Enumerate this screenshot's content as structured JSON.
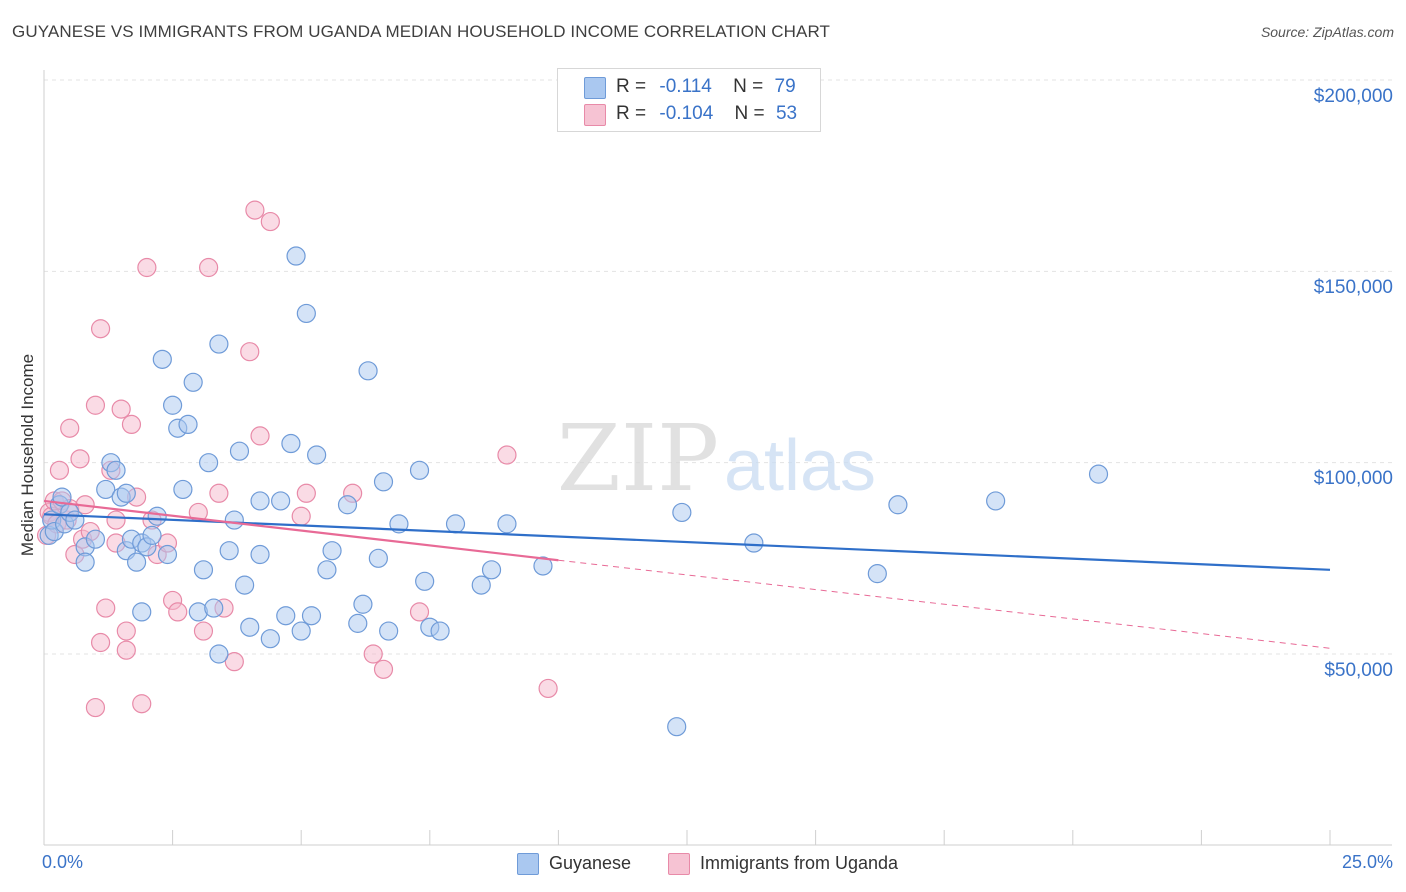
{
  "header": {
    "title": "GUYANESE VS IMMIGRANTS FROM UGANDA MEDIAN HOUSEHOLD INCOME CORRELATION CHART",
    "source": "Source: ZipAtlas.com"
  },
  "watermark": {
    "zip": "ZIP",
    "atlas": "atlas"
  },
  "legend": {
    "guyanese": {
      "r_label": "R =",
      "r_value": "-0.114",
      "n_label": "N =",
      "n_value": "79"
    },
    "uganda": {
      "r_label": "R =",
      "r_value": "-0.104",
      "n_label": "N =",
      "n_value": "53"
    }
  },
  "colors": {
    "guyanese_fill": "#aac8f0",
    "guyanese_stroke": "#6f9bd8",
    "guyanese_line": "#2f6fc9",
    "uganda_fill": "#f6b8cb",
    "uganda_stroke": "#e88aa8",
    "uganda_line": "#e86a96",
    "axis_text": "#3a73c8",
    "grid": "#e3e3e3"
  },
  "chart_data": {
    "type": "scatter",
    "title": "GUYANESE VS IMMIGRANTS FROM UGANDA MEDIAN HOUSEHOLD INCOME CORRELATION CHART",
    "xlabel": "",
    "ylabel": "Median Household Income",
    "xlim": [
      0,
      25
    ],
    "ylim": [
      0,
      210000
    ],
    "x_tick_labels": [
      "0.0%",
      "25.0%"
    ],
    "y_ticks": [
      50000,
      100000,
      150000,
      200000
    ],
    "y_tick_labels": [
      "$50,000",
      "$100,000",
      "$150,000",
      "$200,000"
    ],
    "grid": true,
    "legend_position": "top-center",
    "series": [
      {
        "name": "Guyanese",
        "trend": {
          "x": [
            0,
            25
          ],
          "y": [
            86500,
            72000
          ],
          "style": "solid"
        },
        "points": [
          [
            0.1,
            81000
          ],
          [
            0.15,
            85000
          ],
          [
            0.2,
            82000
          ],
          [
            0.3,
            89000
          ],
          [
            0.35,
            91000
          ],
          [
            0.4,
            84000
          ],
          [
            0.5,
            87000
          ],
          [
            0.6,
            85000
          ],
          [
            0.8,
            78000
          ],
          [
            0.8,
            74000
          ],
          [
            1.0,
            80000
          ],
          [
            1.2,
            93000
          ],
          [
            1.3,
            100000
          ],
          [
            1.4,
            98000
          ],
          [
            1.5,
            91000
          ],
          [
            1.6,
            77000
          ],
          [
            1.6,
            92000
          ],
          [
            1.7,
            80000
          ],
          [
            1.8,
            74000
          ],
          [
            1.9,
            79000
          ],
          [
            1.9,
            61000
          ],
          [
            2.0,
            78000
          ],
          [
            2.1,
            81000
          ],
          [
            2.2,
            86000
          ],
          [
            2.3,
            127000
          ],
          [
            2.4,
            76000
          ],
          [
            2.5,
            115000
          ],
          [
            2.6,
            109000
          ],
          [
            2.7,
            93000
          ],
          [
            2.8,
            110000
          ],
          [
            2.9,
            121000
          ],
          [
            3.0,
            61000
          ],
          [
            3.1,
            72000
          ],
          [
            3.2,
            100000
          ],
          [
            3.3,
            62000
          ],
          [
            3.4,
            50000
          ],
          [
            3.4,
            131000
          ],
          [
            3.6,
            77000
          ],
          [
            3.7,
            85000
          ],
          [
            3.8,
            103000
          ],
          [
            3.9,
            68000
          ],
          [
            4.0,
            57000
          ],
          [
            4.2,
            76000
          ],
          [
            4.2,
            90000
          ],
          [
            4.4,
            54000
          ],
          [
            4.6,
            90000
          ],
          [
            4.7,
            60000
          ],
          [
            4.8,
            105000
          ],
          [
            4.9,
            154000
          ],
          [
            5.0,
            56000
          ],
          [
            5.1,
            139000
          ],
          [
            5.2,
            60000
          ],
          [
            5.3,
            102000
          ],
          [
            5.5,
            72000
          ],
          [
            5.6,
            77000
          ],
          [
            5.9,
            89000
          ],
          [
            6.1,
            58000
          ],
          [
            6.2,
            63000
          ],
          [
            6.3,
            124000
          ],
          [
            6.5,
            75000
          ],
          [
            6.6,
            95000
          ],
          [
            6.7,
            56000
          ],
          [
            6.9,
            84000
          ],
          [
            7.3,
            98000
          ],
          [
            7.4,
            69000
          ],
          [
            7.5,
            57000
          ],
          [
            7.7,
            56000
          ],
          [
            8.0,
            84000
          ],
          [
            8.5,
            68000
          ],
          [
            8.7,
            72000
          ],
          [
            9.0,
            84000
          ],
          [
            9.7,
            73000
          ],
          [
            12.3,
            31000
          ],
          [
            12.4,
            87000
          ],
          [
            13.8,
            79000
          ],
          [
            16.2,
            71000
          ],
          [
            16.6,
            89000
          ],
          [
            18.5,
            90000
          ],
          [
            20.5,
            97000
          ]
        ]
      },
      {
        "name": "Immigrants from Uganda",
        "trend": {
          "x": [
            0,
            10
          ],
          "y": [
            90000,
            74500
          ],
          "style": "solid"
        },
        "trend_extension": {
          "x": [
            10,
            25
          ],
          "y": [
            74500,
            51500
          ],
          "style": "dashed"
        },
        "points": [
          [
            0.05,
            81000
          ],
          [
            0.1,
            87000
          ],
          [
            0.15,
            86000
          ],
          [
            0.2,
            90000
          ],
          [
            0.25,
            84000
          ],
          [
            0.3,
            98000
          ],
          [
            0.35,
            90000
          ],
          [
            0.45,
            85000
          ],
          [
            0.5,
            88000
          ],
          [
            0.5,
            109000
          ],
          [
            0.6,
            76000
          ],
          [
            0.7,
            101000
          ],
          [
            0.75,
            80000
          ],
          [
            0.8,
            89000
          ],
          [
            0.9,
            82000
          ],
          [
            1.0,
            115000
          ],
          [
            1.0,
            36000
          ],
          [
            1.1,
            53000
          ],
          [
            1.1,
            135000
          ],
          [
            1.2,
            62000
          ],
          [
            1.3,
            98000
          ],
          [
            1.4,
            85000
          ],
          [
            1.4,
            79000
          ],
          [
            1.5,
            114000
          ],
          [
            1.6,
            51000
          ],
          [
            1.6,
            56000
          ],
          [
            1.7,
            110000
          ],
          [
            1.8,
            91000
          ],
          [
            1.9,
            37000
          ],
          [
            2.0,
            151000
          ],
          [
            2.1,
            85000
          ],
          [
            2.2,
            76000
          ],
          [
            2.4,
            79000
          ],
          [
            2.5,
            64000
          ],
          [
            2.6,
            61000
          ],
          [
            3.0,
            87000
          ],
          [
            3.1,
            56000
          ],
          [
            3.2,
            151000
          ],
          [
            3.4,
            92000
          ],
          [
            3.5,
            62000
          ],
          [
            3.7,
            48000
          ],
          [
            4.0,
            129000
          ],
          [
            4.1,
            166000
          ],
          [
            4.2,
            107000
          ],
          [
            4.4,
            163000
          ],
          [
            5.0,
            86000
          ],
          [
            5.1,
            92000
          ],
          [
            6.0,
            92000
          ],
          [
            6.4,
            50000
          ],
          [
            6.6,
            46000
          ],
          [
            7.3,
            61000
          ],
          [
            9.0,
            102000
          ],
          [
            9.8,
            41000
          ]
        ]
      }
    ]
  },
  "bottom_legend": {
    "guyanese": "Guyanese",
    "uganda": "Immigrants from Uganda"
  }
}
